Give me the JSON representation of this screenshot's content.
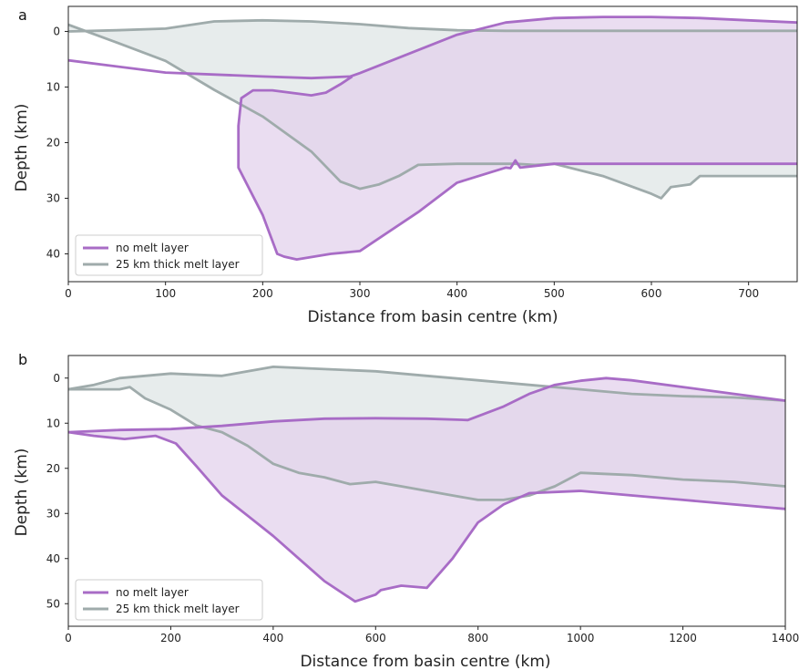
{
  "chart_data": [
    {
      "type": "area",
      "panel": "a",
      "xlabel": "Distance from basin centre (km)",
      "ylabel": "Depth (km)",
      "xlim": [
        0,
        750
      ],
      "ylim": [
        45,
        -4.5
      ],
      "xticks": [
        0,
        100,
        200,
        300,
        400,
        500,
        600,
        700
      ],
      "yticks": [
        0,
        10,
        20,
        30,
        40
      ],
      "legend": {
        "placement": "lower-left",
        "entries": [
          "no melt layer",
          "25 km thick melt layer"
        ]
      },
      "colors": {
        "no_melt": "#a86cc6",
        "no_melt_fill": "#e3d2ec",
        "melt": "#9fabab",
        "melt_fill": "#dfe5e5"
      },
      "series": [
        {
          "name": "no melt layer",
          "color": "#a86cc6",
          "top": {
            "x": [
              0,
              100,
              200,
              250,
              290,
              300,
              400,
              450,
              500,
              550,
              600,
              650,
              700,
              750
            ],
            "y": [
              5.2,
              7.4,
              8.1,
              8.4,
              8.1,
              7.5,
              0.6,
              -1.6,
              -2.4,
              -2.6,
              -2.6,
              -2.4,
              -2.0,
              -1.6
            ]
          },
          "bottom": {
            "x": [
              750,
              700,
              600,
              500,
              465,
              460,
              455,
              450,
              400,
              360,
              300,
              270,
              235,
              222,
              215,
              200,
              175,
              175,
              178,
              190,
              210,
              250,
              265,
              280,
              292
            ],
            "y": [
              23.8,
              23.8,
              23.8,
              23.8,
              24.5,
              23.2,
              24.6,
              24.5,
              27.2,
              32.5,
              39.5,
              40,
              41,
              40.5,
              40,
              33,
              24.5,
              17,
              12,
              10.6,
              10.6,
              11.5,
              11,
              9.5,
              8.1
            ]
          }
        },
        {
          "name": "25 km thick melt layer",
          "color": "#9fabab",
          "top": {
            "x": [
              0,
              50,
              100,
              150,
              200,
              250,
              300,
              350,
              400,
              450,
              500,
              550,
              600,
              650,
              700,
              750
            ],
            "y": [
              0,
              -0.2,
              -0.5,
              -1.8,
              -2.0,
              -1.8,
              -1.3,
              -0.6,
              -0.2,
              -0.1,
              -0.1,
              -0.1,
              -0.1,
              -0.1,
              -0.1,
              -0.1
            ]
          },
          "right_edge": {
            "x": [
              750,
              700,
              650,
              600,
              550,
              500,
              450,
              400
            ],
            "y": [
              1.0,
              0.5,
              0.2,
              0.0,
              0.0,
              0.0,
              0.0,
              0.1
            ]
          },
          "bottom": {
            "x": [
              0,
              50,
              100,
              150,
              200,
              250,
              280,
              300,
              320,
              340,
              360,
              400,
              460,
              480,
              500,
              550,
              600,
              610,
              620,
              640,
              650,
              700,
              750
            ],
            "y": [
              -1.2,
              2.0,
              5.3,
              10.5,
              15.3,
              21.6,
              27.0,
              28.3,
              27.5,
              26.0,
              24.0,
              23.8,
              23.8,
              24.0,
              23.8,
              26.0,
              29.2,
              30.0,
              28.0,
              27.5,
              26.0,
              26.0,
              26.0
            ]
          }
        }
      ]
    },
    {
      "type": "area",
      "panel": "b",
      "xlabel": "Distance from basin centre (km)",
      "ylabel": "Depth (km)",
      "xlim": [
        0,
        1400
      ],
      "ylim": [
        55,
        -5
      ],
      "xticks": [
        0,
        200,
        400,
        600,
        800,
        1000,
        1200,
        1400
      ],
      "yticks": [
        0,
        10,
        20,
        30,
        40,
        50
      ],
      "legend": {
        "placement": "lower-left",
        "entries": [
          "no melt layer",
          "25 km thick melt layer"
        ]
      },
      "colors": {
        "no_melt": "#a86cc6",
        "no_melt_fill": "#e3d2ec",
        "melt": "#9fabab",
        "melt_fill": "#dfe5e5"
      },
      "series": [
        {
          "name": "no melt layer",
          "color": "#a86cc6",
          "top": {
            "x": [
              0,
              100,
              200,
              300,
              400,
              500,
              600,
              700,
              780,
              850,
              900,
              950,
              1000,
              1050,
              1100,
              1200,
              1300,
              1400
            ],
            "y": [
              12,
              11.5,
              11.3,
              10.6,
              9.6,
              9.0,
              8.9,
              9.0,
              9.3,
              6.3,
              3.5,
              1.5,
              0.6,
              0,
              0.5,
              2.0,
              3.5,
              5.0
            ]
          },
          "bottom": {
            "x": [
              0,
              50,
              110,
              170,
              210,
              250,
              300,
              350,
              400,
              450,
              500,
              560,
              600,
              610,
              650,
              700,
              750,
              800,
              850,
              900,
              1000,
              1100,
              1200,
              1300,
              1400
            ],
            "y": [
              12,
              12.8,
              13.5,
              12.8,
              14.5,
              19.5,
              26.0,
              30.5,
              35.0,
              40.0,
              45.0,
              49.5,
              48.0,
              47.0,
              46.0,
              46.5,
              40.0,
              32.0,
              28.0,
              25.5,
              25.0,
              26.0,
              27.0,
              28.0,
              29.0
            ]
          }
        },
        {
          "name": "25 km thick melt layer",
          "color": "#9fabab",
          "top": {
            "x": [
              0,
              50,
              100,
              150,
              200,
              300,
              400,
              500,
              600,
              700,
              800,
              900,
              1000,
              1100,
              1200,
              1300,
              1400
            ],
            "y": [
              2.5,
              1.5,
              0,
              -0.5,
              -1.0,
              -0.5,
              -2.5,
              -2.0,
              -1.5,
              -0.5,
              0.5,
              1.5,
              2.5,
              3.5,
              4.0,
              4.3,
              5.0
            ]
          },
          "bottom": {
            "x": [
              0,
              100,
              120,
              150,
              200,
              250,
              300,
              350,
              400,
              450,
              500,
              550,
              600,
              650,
              700,
              750,
              800,
              850,
              900,
              950,
              1000,
              1100,
              1200,
              1300,
              1400
            ],
            "y": [
              2.5,
              2.5,
              2.0,
              4.5,
              7.0,
              10.5,
              12.0,
              15.0,
              19.0,
              21.0,
              22.0,
              23.5,
              23.0,
              24.0,
              25.0,
              26.0,
              27.0,
              27.0,
              26.0,
              24.0,
              21.0,
              21.5,
              22.5,
              23.0,
              24.0
            ]
          }
        }
      ]
    }
  ]
}
